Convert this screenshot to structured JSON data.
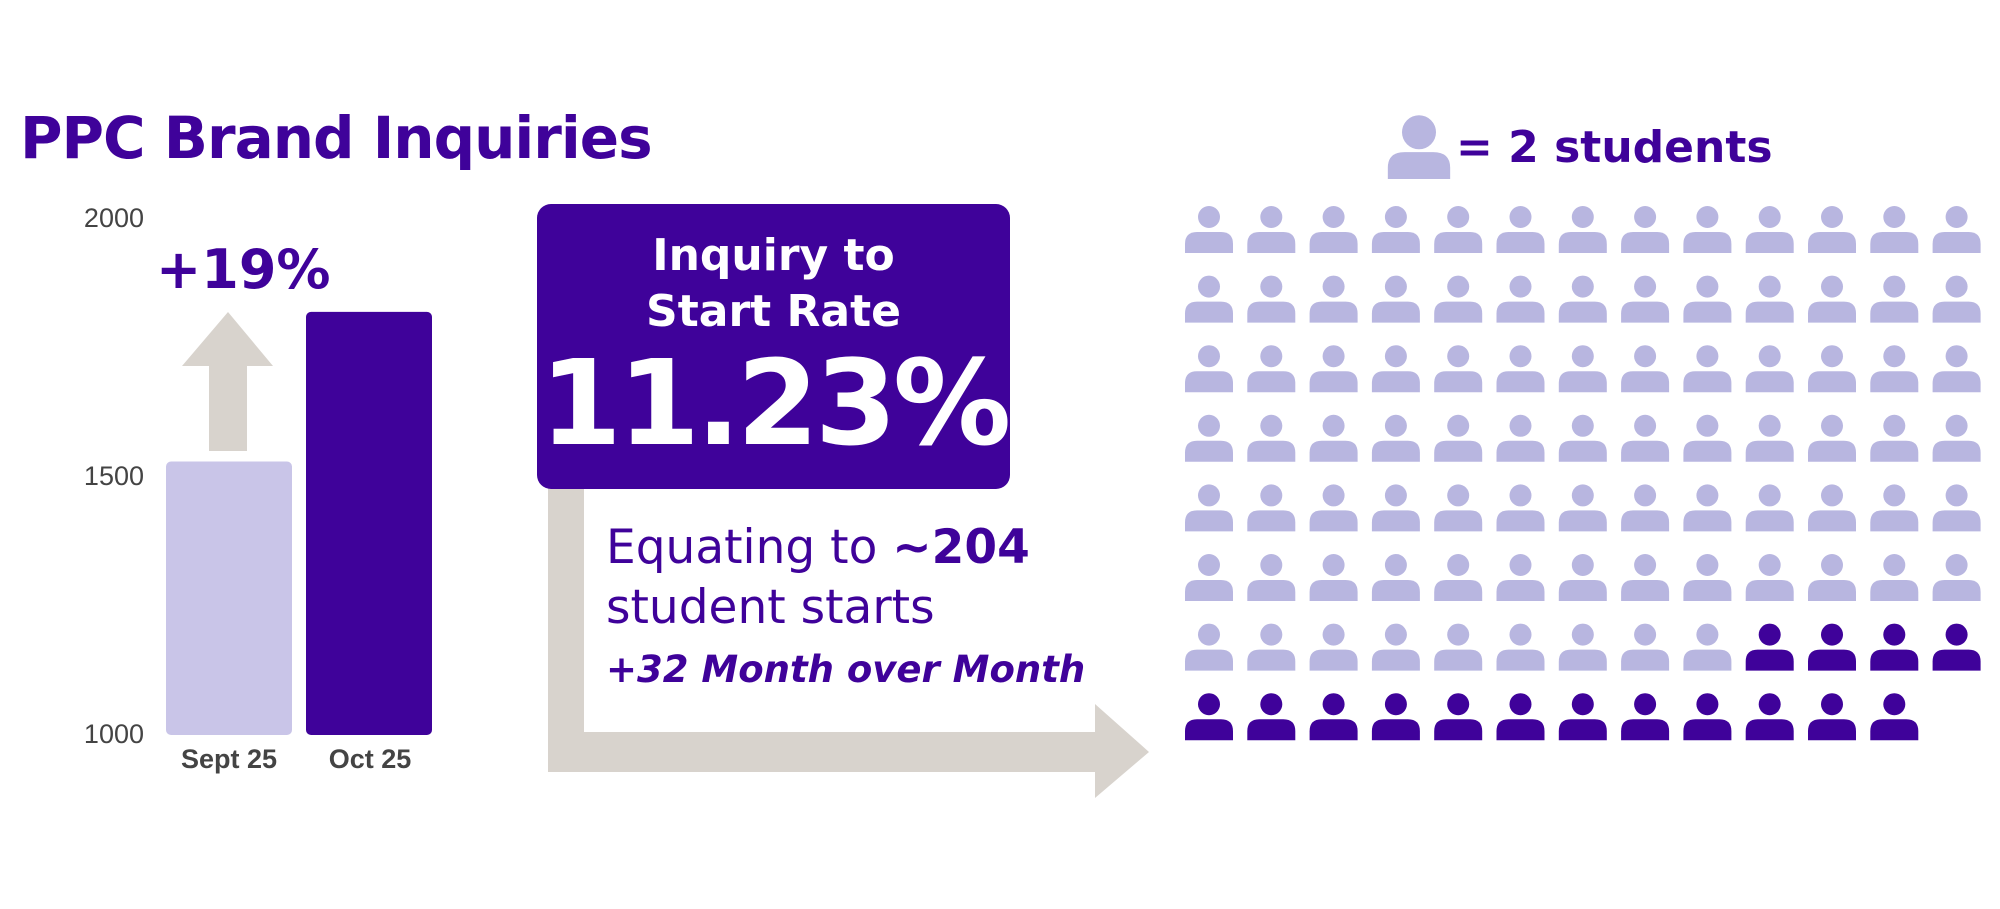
{
  "chart_data": {
    "type": "bar",
    "title": "PPC Brand Inquiries",
    "categories": [
      "Sept 25",
      "Oct 25"
    ],
    "values": [
      1530,
      1820
    ],
    "ylim": [
      1000,
      2000
    ],
    "yticks": [
      "2000",
      "1500",
      "1000"
    ],
    "annotation": "+19%",
    "colors": [
      "#c9c5e8",
      "#3f029a"
    ]
  },
  "rate_box": {
    "label_line1": "Inquiry to",
    "label_line2": "Start Rate",
    "value": "11.23%"
  },
  "equating": {
    "text_before": "Equating to ",
    "highlight": "~204",
    "line2": "student starts",
    "mom": "+32 Month over Month"
  },
  "pictogram": {
    "legend_text": "= 2 students",
    "total_icons": 103,
    "highlighted_icons": 16,
    "columns": 13,
    "light_color": "#b8b6e0",
    "dark_color": "#3f029a"
  }
}
